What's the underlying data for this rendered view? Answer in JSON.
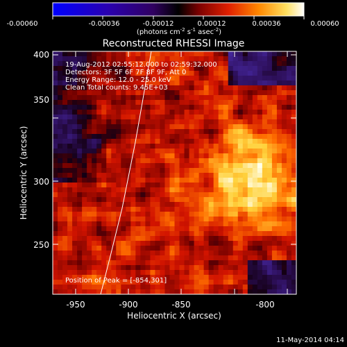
{
  "colorbar": {
    "ticks": [
      "-0.00060",
      "-0.00036",
      "-0.00012",
      "0.00012",
      "0.00036",
      "0.00060"
    ],
    "units_main": "(photons cm",
    "units_exp1": "-2",
    "units_mid1": " s",
    "units_exp2": "-1",
    "units_mid2": " asec",
    "units_exp3": "-2",
    "units_close": ")",
    "colors": [
      "#0000ff",
      "#2a00b0",
      "#300060",
      "#000000",
      "#7a0000",
      "#e02000",
      "#ff8800",
      "#ffe060",
      "#ffffff"
    ]
  },
  "plot": {
    "title": "Reconstructed RHESSI Image",
    "xlabel": "Heliocentric X (arcsec)",
    "ylabel": "Heliocentric Y (arcsec)",
    "xticks": [
      "-950",
      "-900",
      "-850",
      "-800"
    ],
    "yticks": [
      "400",
      "350",
      "300",
      "250"
    ],
    "annotations": [
      "19-Aug-2012 02:55:12.000 to 02:59:32.000",
      "Detectors: 3F 5F 6F 7F 8F 9F, Att 0",
      "Energy Range: 12.0 - 25.0 keV",
      "Clean     Total counts: 9.45E+03"
    ],
    "peak_label": "Position of Peak = [-854,301]",
    "footer_date": "11-May-2014 04:14"
  },
  "chart_data": {
    "type": "heatmap",
    "xlim": [
      -965,
      -827
    ],
    "ylim": [
      211,
      403
    ],
    "xticks": [
      -950,
      -900,
      -850,
      -800
    ],
    "yticks": [
      250,
      300,
      350,
      400
    ],
    "peak": [
      -854,
      301
    ],
    "colorbar_range": [
      -0.0006,
      0.0006
    ]
  }
}
